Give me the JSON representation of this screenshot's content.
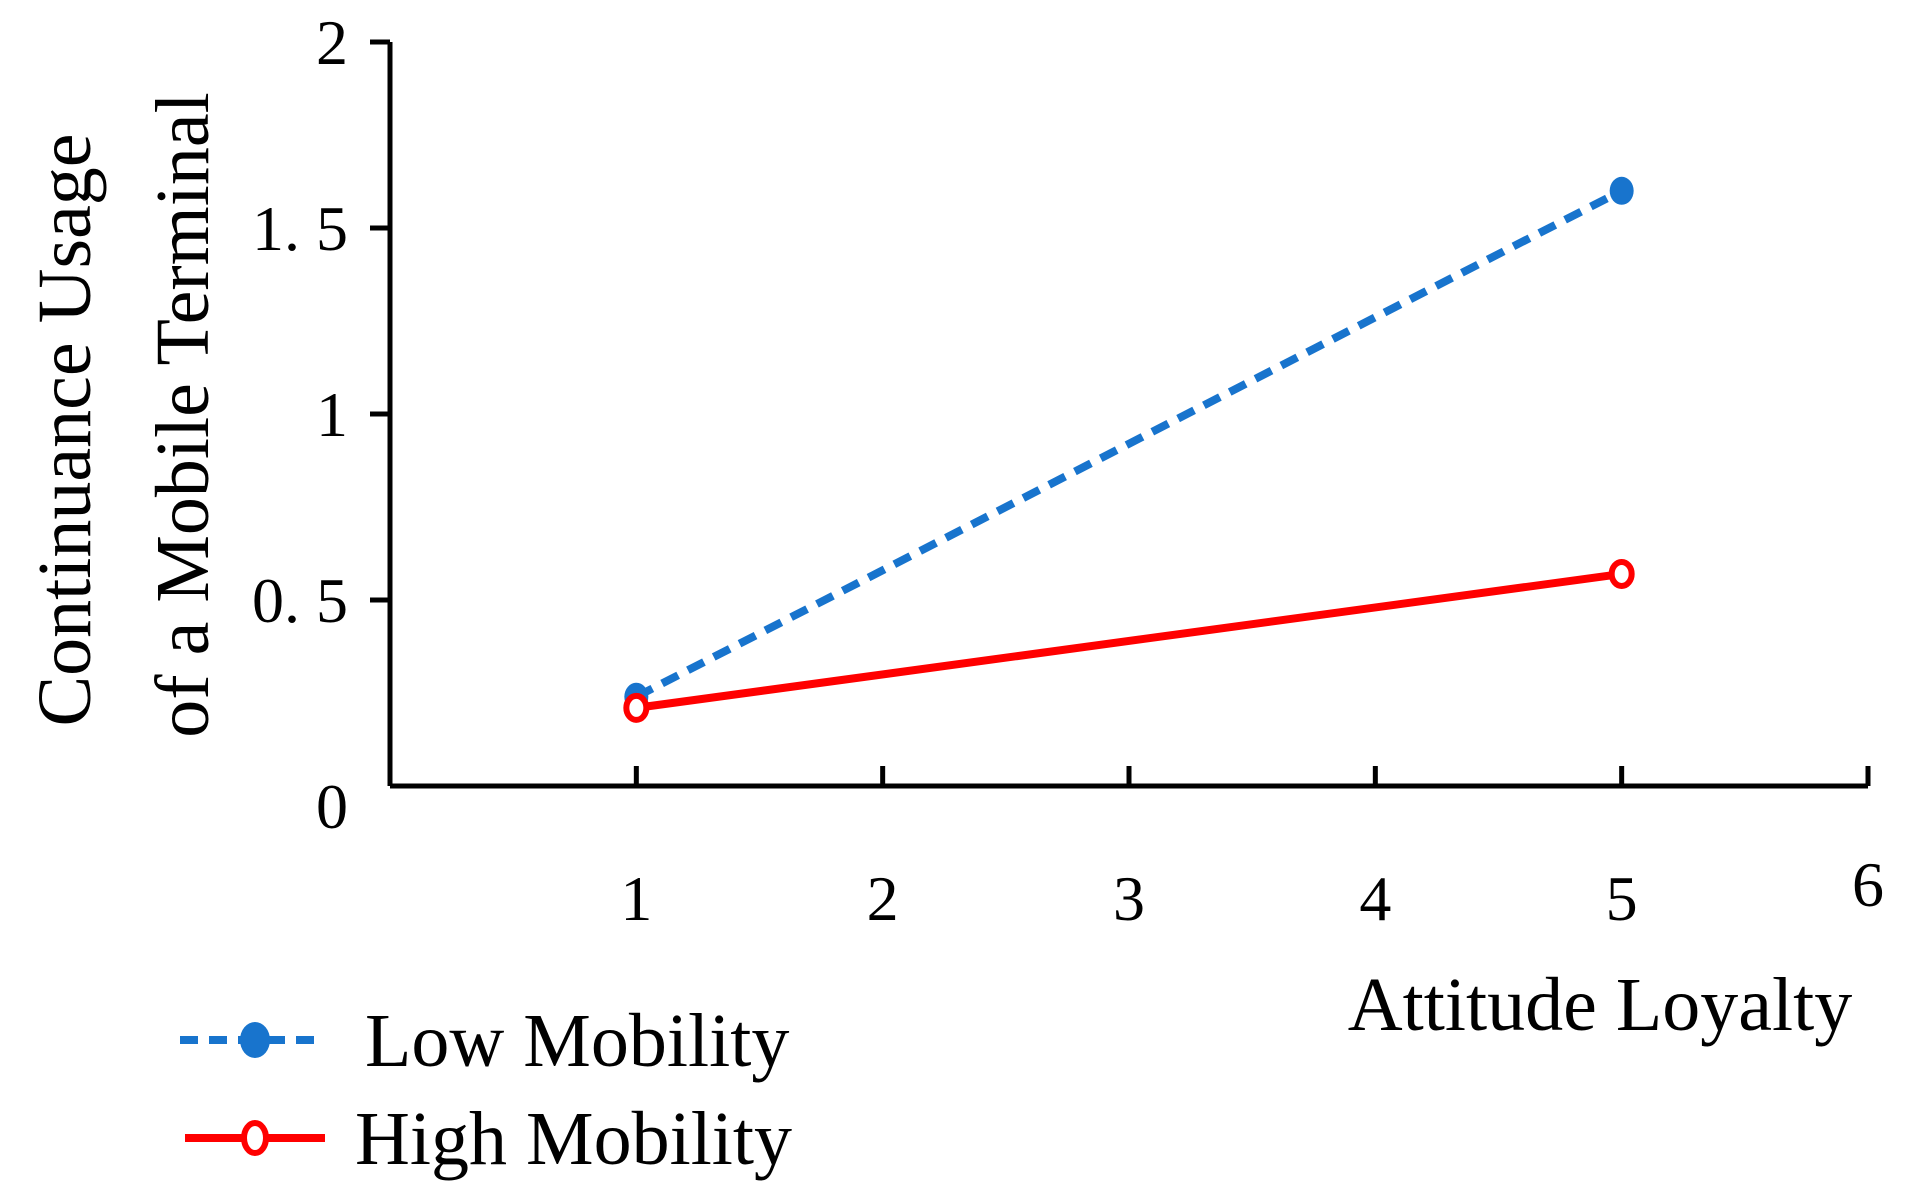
{
  "chart_data": {
    "type": "line",
    "title": "",
    "xlabel": "Attitude Loyalty",
    "ylabel_lines": [
      "Continuance Usage",
      "of a Mobile Terminal"
    ],
    "xlim": [
      0,
      6
    ],
    "ylim": [
      0,
      2
    ],
    "x_ticks": [
      1,
      2,
      3,
      4,
      5,
      6
    ],
    "x_tick_labels": [
      "1",
      "2",
      "3",
      "4",
      "5",
      "6"
    ],
    "y_ticks": [
      0,
      0.5,
      1,
      1.5,
      2
    ],
    "y_tick_labels": [
      "0",
      "0. 5",
      "1",
      "1. 5",
      "2"
    ],
    "legend_position": "bottom-left",
    "series": [
      {
        "name": "Low Mobility",
        "color": "#1874CD",
        "line_style": "dashed",
        "marker": "filled-circle",
        "x": [
          1,
          5
        ],
        "y": [
          0.24,
          1.6
        ]
      },
      {
        "name": "High Mobility",
        "color": "#FF0000",
        "line_style": "solid",
        "marker": "open-circle",
        "x": [
          1,
          5
        ],
        "y": [
          0.21,
          0.57
        ]
      }
    ]
  }
}
